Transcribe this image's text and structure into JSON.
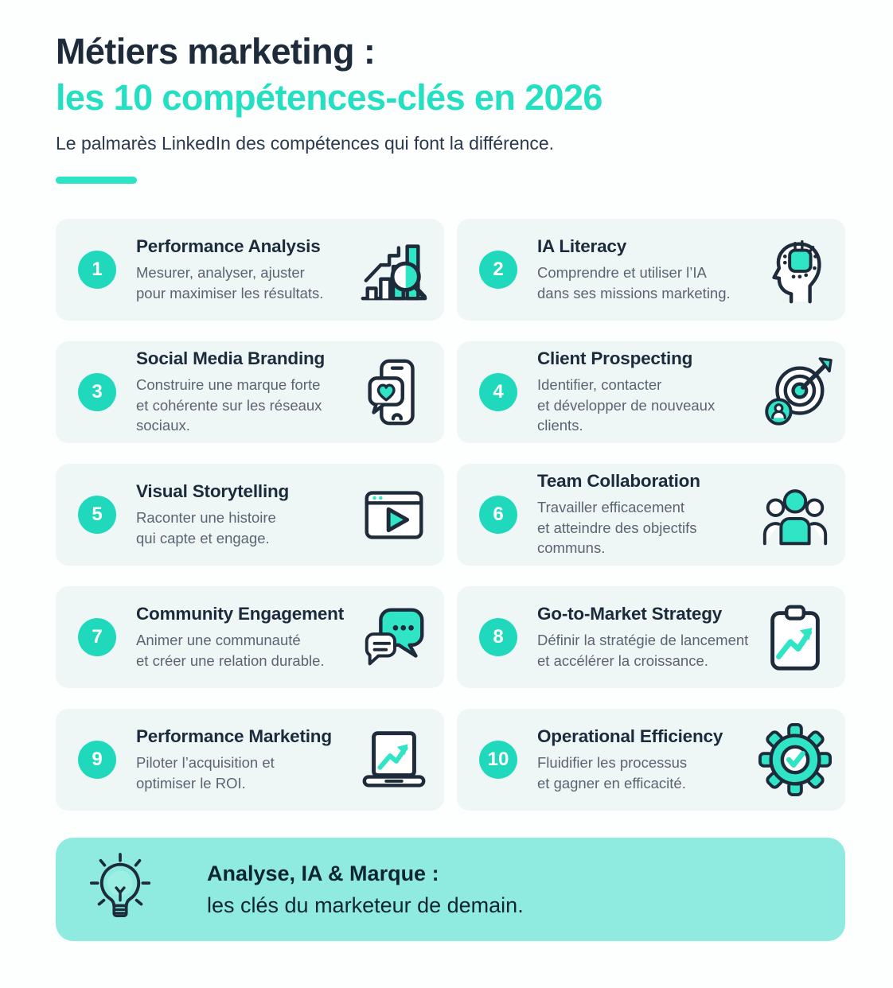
{
  "header": {
    "title_line1": "Métiers marketing :",
    "title_line2": "les 10 compétences-clés en 2026",
    "subtitle": "Le palmarès LinkedIn des compétences qui font la différence."
  },
  "cards": [
    {
      "number": "1",
      "title": "Performance Analysis",
      "description": "Mesurer, analyser, ajuster\npour maximiser les résultats.",
      "icon": "bar-chart-magnifier-icon"
    },
    {
      "number": "2",
      "title": "IA Literacy",
      "description": "Comprendre et utiliser l’IA\ndans ses missions marketing.",
      "icon": "ai-head-chip-icon"
    },
    {
      "number": "3",
      "title": "Social Media Branding",
      "description": "Construire une marque forte\net cohérente sur les réseaux sociaux.",
      "icon": "phone-heart-bubble-icon"
    },
    {
      "number": "4",
      "title": "Client Prospecting",
      "description": "Identifier, contacter\net développer de nouveaux clients.",
      "icon": "target-arrow-client-icon"
    },
    {
      "number": "5",
      "title": "Visual Storytelling",
      "description": "Raconter une histoire\nqui capte et engage.",
      "icon": "video-player-icon"
    },
    {
      "number": "6",
      "title": "Team Collaboration",
      "description": "Travailler efficacement\net atteindre des objectifs communs.",
      "icon": "team-people-icon"
    },
    {
      "number": "7",
      "title": "Community Engagement",
      "description": "Animer une communauté\net créer une relation durable.",
      "icon": "chat-bubbles-icon"
    },
    {
      "number": "8",
      "title": "Go-to-Market Strategy",
      "description": "Définir la stratégie de lancement\net accélérer la croissance.",
      "icon": "clipboard-growth-icon"
    },
    {
      "number": "9",
      "title": "Performance Marketing",
      "description": "Piloter l’acquisition et\noptimiser le ROI.",
      "icon": "laptop-growth-icon"
    },
    {
      "number": "10",
      "title": "Operational Efficiency",
      "description": "Fluidifier les processus\net gagner en efficacité.",
      "icon": "gear-check-icon"
    }
  ],
  "footer": {
    "title": "Analyse, IA & Marque :",
    "subtitle": "les clés du marketeur de demain.",
    "icon": "lightbulb-icon"
  },
  "colors": {
    "accent_teal": "#25DFC2",
    "badge_teal": "#20D9BC",
    "banner_background": "#8FEBE0",
    "card_background": "#EFF6F6",
    "navy": "#1D2B3B"
  }
}
